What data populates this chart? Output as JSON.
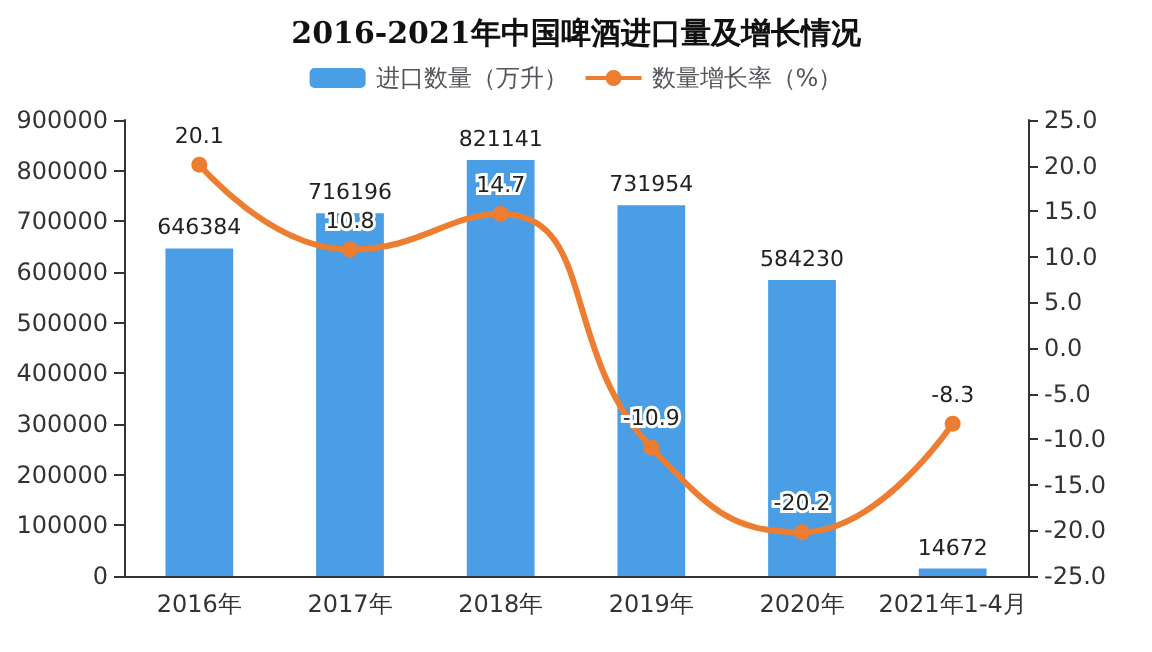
{
  "chart_data": {
    "type": "bar",
    "title": "2016-2021年中国啤酒进口量及增长情况",
    "categories": [
      "2016年",
      "2017年",
      "2018年",
      "2019年",
      "2020年",
      "2021年1-4月"
    ],
    "series": [
      {
        "name": "进口数量（万升）",
        "color": "#4a9ee6",
        "values": [
          646384,
          716196,
          821141,
          731954,
          584230,
          14672
        ]
      },
      {
        "name": "数量增长率（%）",
        "type": "line",
        "axis": "y2",
        "color": "#ed7d31",
        "values": [
          20.1,
          10.8,
          14.7,
          -10.9,
          -20.2,
          -8.3
        ]
      }
    ],
    "data_labels": true,
    "marker": "circle",
    "legend": "top",
    "ylim": [
      0,
      900000
    ],
    "yticks": [
      0,
      100000,
      200000,
      300000,
      400000,
      500000,
      600000,
      700000,
      800000,
      900000
    ],
    "y2lim": [
      -25,
      25
    ],
    "y2ticks": [
      {
        "value": -25,
        "label": "-25.0"
      },
      {
        "value": -20,
        "label": "-20.0"
      },
      {
        "value": -15,
        "label": "-15.0"
      },
      {
        "value": -10,
        "label": "-10.0"
      },
      {
        "value": -5,
        "label": "-5.0"
      },
      {
        "value": 0,
        "label": "0.0"
      },
      {
        "value": 5,
        "label": "5.0"
      },
      {
        "value": 10,
        "label": "10.0"
      },
      {
        "value": 15,
        "label": "15.0"
      },
      {
        "value": 20,
        "label": "20.0"
      },
      {
        "value": 25,
        "label": "25.0"
      }
    ],
    "grid": false
  }
}
